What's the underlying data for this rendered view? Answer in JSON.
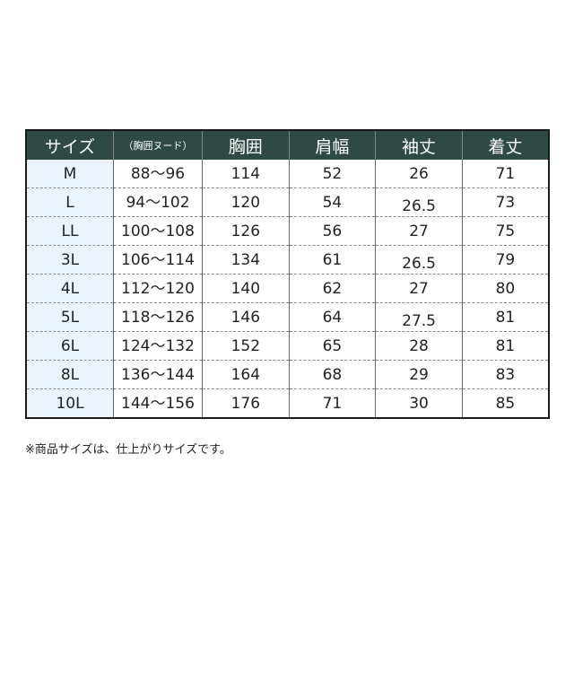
{
  "table": {
    "headers": [
      "サイズ",
      "（胸囲ヌード）",
      "胸囲",
      "肩幅",
      "袖丈",
      "着丈"
    ],
    "rows": [
      [
        "M",
        "88～96",
        "114",
        "52",
        "26",
        "71"
      ],
      [
        "L",
        "94～102",
        "120",
        "54",
        "26.5",
        "73"
      ],
      [
        "LL",
        "100～108",
        "126",
        "56",
        "27",
        "75"
      ],
      [
        "3L",
        "106～114",
        "134",
        "61",
        "26.5",
        "79"
      ],
      [
        "4L",
        "112～120",
        "140",
        "62",
        "27",
        "80"
      ],
      [
        "5L",
        "118～126",
        "146",
        "64",
        "27.5",
        "81"
      ],
      [
        "6L",
        "124～132",
        "152",
        "65",
        "28",
        "81"
      ],
      [
        "8L",
        "136～144",
        "164",
        "68",
        "29",
        "83"
      ],
      [
        "10L",
        "144～156",
        "176",
        "71",
        "30",
        "85"
      ]
    ]
  },
  "note": "※商品サイズは、仕上がりサイズです。",
  "colors": {
    "header_bg": "#2f4a42",
    "size_col_bg": "#eaf3fc"
  }
}
